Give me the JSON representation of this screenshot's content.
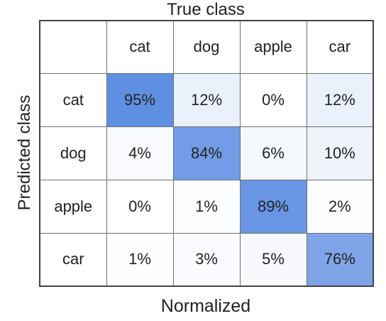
{
  "chart_data": {
    "type": "heatmap",
    "title": "True class",
    "xlabel": "True class",
    "ylabel": "Predicted class",
    "footer": "Normalized",
    "x_categories": [
      "cat",
      "dog",
      "apple",
      "car"
    ],
    "y_categories": [
      "cat",
      "dog",
      "apple",
      "car"
    ],
    "values": [
      [
        95,
        12,
        0,
        12
      ],
      [
        4,
        84,
        6,
        10
      ],
      [
        0,
        1,
        89,
        2
      ],
      [
        1,
        3,
        5,
        76
      ]
    ],
    "cell_labels": [
      [
        "95%",
        "12%",
        "0%",
        "12%"
      ],
      [
        "4%",
        "84%",
        "6%",
        "10%"
      ],
      [
        "0%",
        "1%",
        "89%",
        "2%"
      ],
      [
        "1%",
        "3%",
        "5%",
        "76%"
      ]
    ],
    "colormap": {
      "low": "#ffffff",
      "high": "#5f8fe2"
    }
  }
}
